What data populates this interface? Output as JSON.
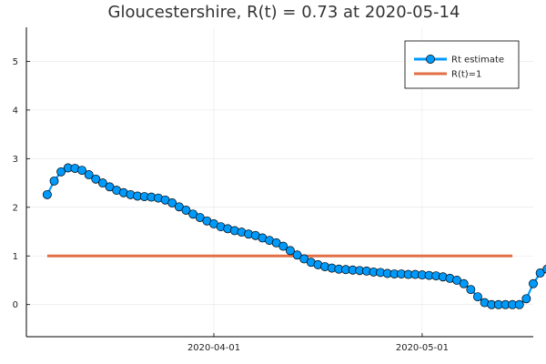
{
  "chart_data": {
    "type": "line",
    "title": "Gloucestershire, R(t) = 0.73 at 2020-05-14",
    "xlabel": "",
    "ylabel": "",
    "x_start": "2020-03-08",
    "x_end": "2020-05-14",
    "xlim": [
      "2020-03-05",
      "2020-05-17"
    ],
    "ylim": [
      -0.66,
      5.7
    ],
    "x_ticks": [
      {
        "date": "2020-04-01",
        "label": "2020-04-01"
      },
      {
        "date": "2020-05-01",
        "label": "2020-05-01"
      }
    ],
    "y_ticks": [
      {
        "value": 0,
        "label": "0"
      },
      {
        "value": 1,
        "label": "1"
      },
      {
        "value": 2,
        "label": "2"
      },
      {
        "value": 3,
        "label": "3"
      },
      {
        "value": 4,
        "label": "4"
      },
      {
        "value": 5,
        "label": "5"
      }
    ],
    "grid": true,
    "legend_position": "top-right",
    "series": [
      {
        "name": "Rt estimate",
        "color": "#009AFA",
        "marker": "circle",
        "values": [
          2.26,
          2.54,
          2.73,
          2.81,
          2.8,
          2.76,
          2.67,
          2.58,
          2.5,
          2.42,
          2.35,
          2.3,
          2.26,
          2.23,
          2.22,
          2.21,
          2.19,
          2.15,
          2.09,
          2.01,
          1.94,
          1.86,
          1.79,
          1.72,
          1.66,
          1.6,
          1.56,
          1.52,
          1.49,
          1.45,
          1.42,
          1.37,
          1.32,
          1.27,
          1.2,
          1.11,
          1.02,
          0.94,
          0.87,
          0.82,
          0.78,
          0.75,
          0.73,
          0.72,
          0.71,
          0.7,
          0.69,
          0.67,
          0.66,
          0.64,
          0.63,
          0.63,
          0.62,
          0.62,
          0.61,
          0.6,
          0.59,
          0.57,
          0.54,
          0.5,
          0.43,
          0.31,
          0.16,
          0.04,
          0.0,
          0.0,
          0.0,
          0.0,
          0.0,
          0.12,
          0.43,
          0.65,
          0.73
        ]
      },
      {
        "name": "R(t)=1",
        "color": "#E26F46",
        "marker": "none",
        "y_constant": 1
      }
    ]
  }
}
